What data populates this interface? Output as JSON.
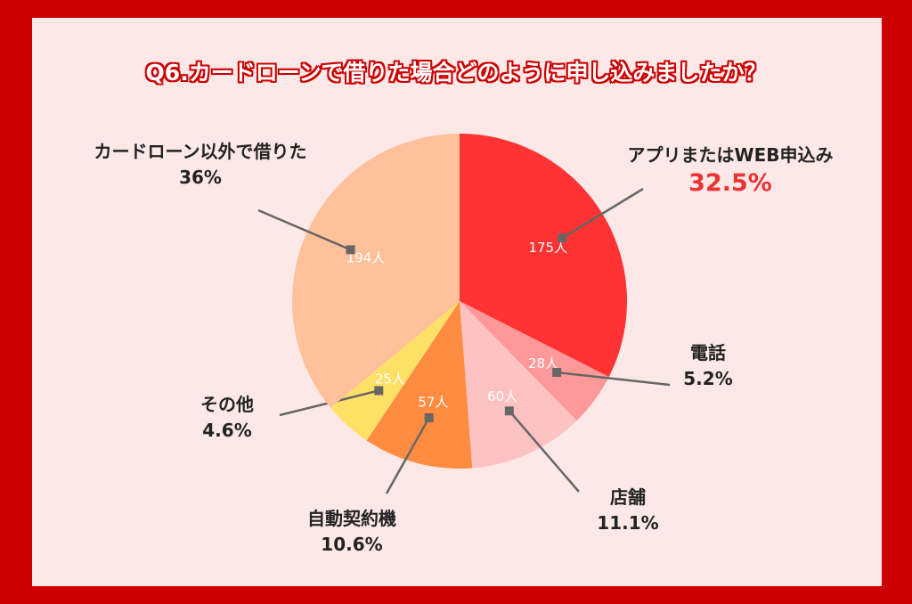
{
  "title": "Q6.カードローンで借りた場合どのように申し込みましたか？",
  "chart_data": {
    "type": "pie",
    "slices": [
      {
        "label": "アプリまたはWEB申込み",
        "count": 175,
        "count_label": "175人",
        "percent": 32.5,
        "percent_label": "32.5%",
        "color": "#ff3333"
      },
      {
        "label": "電話",
        "count": 28,
        "count_label": "28人",
        "percent": 5.2,
        "percent_label": "5.2%",
        "color": "#ff9999"
      },
      {
        "label": "店舗",
        "count": 60,
        "count_label": "60人",
        "percent": 11.1,
        "percent_label": "11.1%",
        "color": "#ffc2c2"
      },
      {
        "label": "自動契約機",
        "count": 57,
        "count_label": "57人",
        "percent": 10.6,
        "percent_label": "10.6%",
        "color": "#ff8c40"
      },
      {
        "label": "その他",
        "count": 25,
        "count_label": "25人",
        "percent": 4.6,
        "percent_label": "4.6%",
        "color": "#ffe066"
      },
      {
        "label": "カードローン以外で借りた",
        "count": 194,
        "count_label": "194人",
        "percent": 36.0,
        "percent_label": "36%",
        "color": "#ffc199"
      }
    ]
  }
}
